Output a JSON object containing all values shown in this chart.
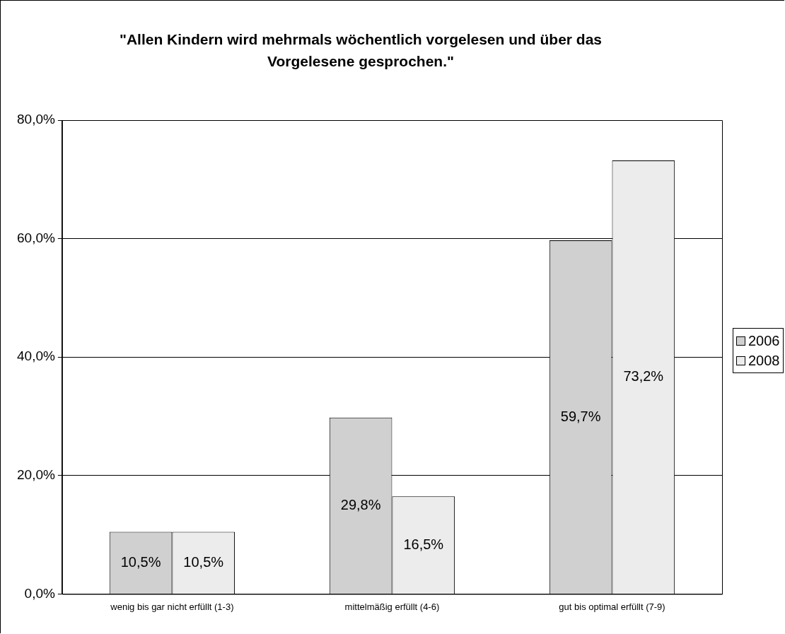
{
  "chart_data": {
    "type": "bar",
    "title": "\"Allen Kindern wird mehrmals wöchentlich vorgelesen und über das Vorgelesene gesprochen.\"",
    "categories": [
      "wenig bis gar nicht erfüllt (1-3)",
      "mittelmäßig erfüllt (4-6)",
      "gut bis optimal erfüllt (7-9)"
    ],
    "series": [
      {
        "name": "2006",
        "color": "#d0d0d0",
        "values": [
          10.5,
          29.8,
          59.7
        ],
        "value_labels": [
          "10,5%",
          "29,8%",
          "59,7%"
        ]
      },
      {
        "name": "2008",
        "color": "#ececec",
        "values": [
          10.5,
          16.5,
          73.2
        ],
        "value_labels": [
          "10,5%",
          "16,5%",
          "73,2%"
        ]
      }
    ],
    "ylim": [
      0,
      80
    ],
    "yticks": [
      {
        "value": 0,
        "label": "0,0%"
      },
      {
        "value": 20,
        "label": "20,0%"
      },
      {
        "value": 40,
        "label": "40,0%"
      },
      {
        "value": 60,
        "label": "60,0%"
      },
      {
        "value": 80,
        "label": "80,0%"
      }
    ],
    "grid": "y",
    "legend": "right"
  }
}
